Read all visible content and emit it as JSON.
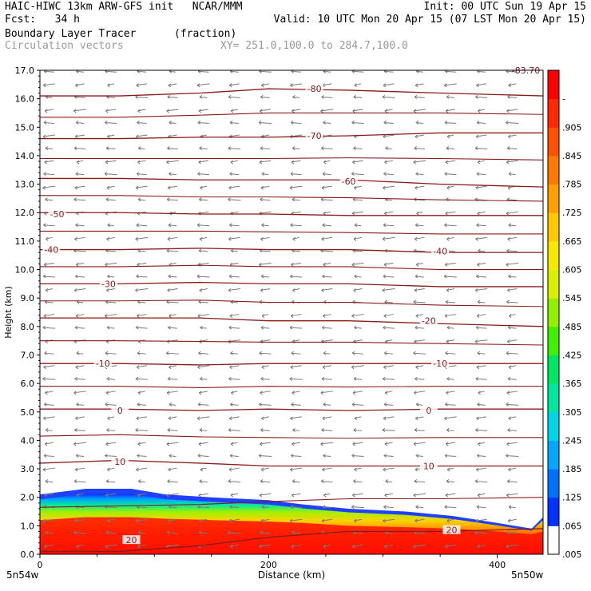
{
  "header": {
    "title_left": "HAIC-HIWC 13km ARW-GFS init   NCAR/MMM",
    "init": "Init: 00 UTC Sun 19 Apr 15",
    "fcst": "Fcst:   34 h",
    "valid": "Valid: 10 UTC Mon 20 Apr 15 (07 LST Mon 20 Apr 15)",
    "field": "Boundary Layer Tracer",
    "field_units": "(fraction)",
    "vectors": "Circulation vectors",
    "xy": "XY= 251.0,100.0 to 284.7,100.0"
  },
  "chart_data": {
    "type": "heatmap",
    "xlabel": "Distance (km)",
    "ylabel": "Height (km)",
    "xlim": [
      0,
      440
    ],
    "ylim": [
      0,
      17
    ],
    "x_ticks": [
      0,
      200,
      400
    ],
    "x_tick_labels": [
      "0",
      "200",
      "400"
    ],
    "y_ticks": [
      0,
      1,
      2,
      3,
      4,
      5,
      6,
      7,
      8,
      9,
      10,
      11,
      12,
      13,
      14,
      15,
      16,
      17
    ],
    "y_tick_labels": [
      "0.0",
      "1.0",
      "2.0",
      "3.0",
      "4.0",
      "5.0",
      "6.0",
      "7.0",
      "8.0",
      "9.0",
      "10.0",
      "11.0",
      "12.0",
      "13.0",
      "14.0",
      "15.0",
      "16.0",
      "17.0"
    ],
    "endpoint_left": "5n54w",
    "endpoint_right": "5n50w",
    "colorbar": {
      "labels": [
        ".005",
        ".065",
        ".125",
        ".185",
        ".245",
        ".305",
        ".365",
        ".425",
        ".485",
        ".545",
        ".605",
        ".665",
        ".725",
        ".785",
        ".845",
        ".905",
        "-"
      ],
      "colors": [
        "#ffffff",
        "#0033ff",
        "#0072ff",
        "#00a8ff",
        "#00d4e8",
        "#00e8a0",
        "#00e860",
        "#40f000",
        "#90f000",
        "#d8f000",
        "#f8e800",
        "#ffc800",
        "#ffa000",
        "#ff7800",
        "#ff5000",
        "#ff2800",
        "#ff0000"
      ]
    },
    "temperature_contours": [
      {
        "label": "20",
        "y_km": [
          0.1,
          0.1,
          0.3,
          0.6,
          0.8,
          0.8,
          0.9
        ]
      },
      {
        "label": "10",
        "y_km": [
          3.2,
          3.3,
          3.2,
          3.1,
          3.1,
          3.1,
          3.1
        ]
      },
      {
        "label": "0",
        "y_km": [
          5.1,
          5.1,
          5.05,
          5.1,
          5.05,
          5.1,
          5.1
        ]
      },
      {
        "label": "-10",
        "y_km": [
          6.7,
          6.7,
          6.65,
          6.7,
          6.7,
          6.7,
          6.7
        ]
      },
      {
        "label": "-20",
        "y_km": [
          8.3,
          8.3,
          8.3,
          8.2,
          8.2,
          8.1,
          8.0
        ]
      },
      {
        "label": "-30",
        "y_km": [
          9.5,
          9.5,
          9.55,
          9.5,
          9.5,
          9.4,
          9.4
        ]
      },
      {
        "label": "-40",
        "y_km": [
          10.7,
          10.7,
          10.75,
          10.7,
          10.7,
          10.6,
          10.6
        ]
      },
      {
        "label": "-50",
        "y_km": [
          12.0,
          12.0,
          11.95,
          11.95,
          11.9,
          11.9,
          11.9
        ]
      },
      {
        "label": "-60",
        "y_km": [
          13.2,
          13.2,
          13.15,
          13.15,
          13.15,
          13.0,
          12.9
        ]
      },
      {
        "label": "-70",
        "y_km": [
          14.6,
          14.6,
          14.65,
          14.65,
          14.7,
          14.8,
          14.8
        ]
      },
      {
        "label": "-80",
        "y_km": [
          16.1,
          16.1,
          16.2,
          16.35,
          16.3,
          16.2,
          16.1
        ]
      }
    ],
    "contour_x_km": [
      0,
      70,
      140,
      200,
      270,
      350,
      440
    ],
    "contour_label_positions": [
      {
        "label": "20",
        "x_km": 80,
        "y_km": 0.5
      },
      {
        "label": "20",
        "x_km": 360,
        "y_km": 0.85
      },
      {
        "label": "10",
        "x_km": 70,
        "y_km": 3.25
      },
      {
        "label": "10",
        "x_km": 340,
        "y_km": 3.1
      },
      {
        "label": "0",
        "x_km": 70,
        "y_km": 5.05
      },
      {
        "label": "0",
        "x_km": 340,
        "y_km": 5.05
      },
      {
        "label": "-10",
        "x_km": 55,
        "y_km": 6.7
      },
      {
        "label": "-10",
        "x_km": 350,
        "y_km": 6.7
      },
      {
        "label": "-20",
        "x_km": 340,
        "y_km": 8.2
      },
      {
        "label": "-30",
        "x_km": 60,
        "y_km": 9.5
      },
      {
        "label": "-40",
        "x_km": 10,
        "y_km": 10.7
      },
      {
        "label": "-40",
        "x_km": 350,
        "y_km": 10.65
      },
      {
        "label": "-50",
        "x_km": 15,
        "y_km": 11.95
      },
      {
        "label": "-60",
        "x_km": 270,
        "y_km": 13.1
      },
      {
        "label": "-70",
        "x_km": 240,
        "y_km": 14.7
      },
      {
        "label": "-80",
        "x_km": 240,
        "y_km": 16.35
      },
      {
        "label": "-83.70",
        "x_km": 425,
        "y_km": 17.0
      }
    ],
    "boundary_layer": {
      "x_km": [
        0,
        40,
        80,
        110,
        150,
        200,
        230,
        270,
        320,
        360,
        400,
        430,
        440
      ],
      "top_km": [
        2.1,
        2.3,
        2.3,
        2.1,
        2.0,
        1.9,
        1.75,
        1.6,
        1.5,
        1.35,
        1.1,
        0.9,
        1.3
      ],
      "core_km": [
        1.2,
        1.3,
        1.3,
        1.25,
        1.2,
        1.15,
        1.1,
        1.0,
        0.95,
        0.9,
        0.8,
        0.7,
        0.8
      ]
    }
  }
}
